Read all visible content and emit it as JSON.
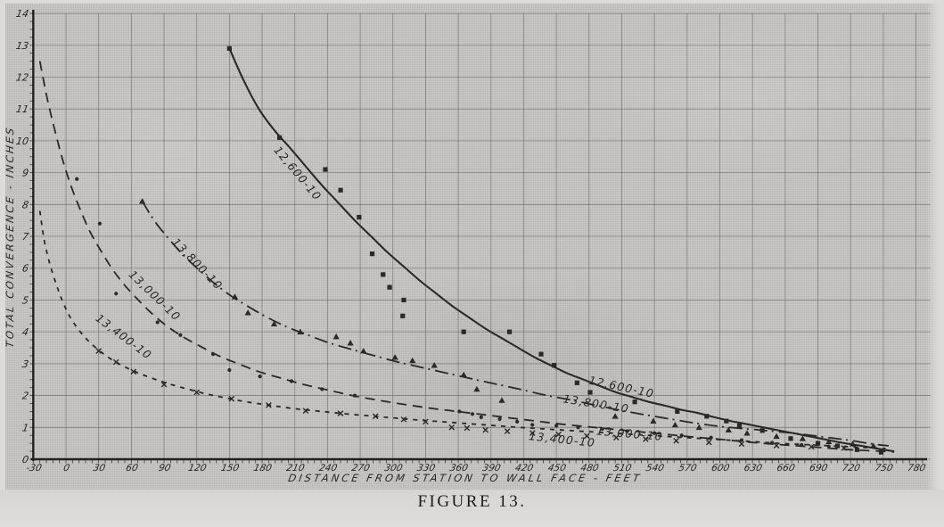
{
  "page": {
    "caption": "FIGURE 13."
  },
  "colors": {
    "paper": "#c8c7c3",
    "ink": "#2b2925",
    "grid": "#5d5950",
    "axis": "#23221e",
    "label": "#26241f"
  },
  "chart_data": {
    "type": "line",
    "title": "FIGURE 13.",
    "xlabel": "DISTANCE FROM STATION TO WALL FACE - FEET",
    "ylabel": "TOTAL CONVERGENCE - INCHES",
    "xlim": [
      -30,
      780
    ],
    "ylim": [
      0,
      14
    ],
    "grid": true,
    "x_ticks": [
      -30,
      0,
      30,
      60,
      90,
      120,
      150,
      180,
      210,
      240,
      270,
      300,
      330,
      360,
      390,
      420,
      450,
      480,
      510,
      540,
      570,
      600,
      630,
      660,
      690,
      720,
      750,
      780
    ],
    "y_ticks": [
      0,
      1,
      2,
      3,
      4,
      5,
      6,
      7,
      8,
      9,
      10,
      11,
      12,
      13,
      14
    ],
    "series": [
      {
        "name": "12,600-10",
        "line": "solid",
        "marker": "square",
        "curve": [
          [
            150,
            12.9
          ],
          [
            163,
            11.9
          ],
          [
            177,
            11.0
          ],
          [
            192,
            10.3
          ],
          [
            205,
            9.8
          ],
          [
            220,
            9.2
          ],
          [
            235,
            8.6
          ],
          [
            250,
            8.05
          ],
          [
            265,
            7.5
          ],
          [
            280,
            7.0
          ],
          [
            295,
            6.5
          ],
          [
            310,
            6.05
          ],
          [
            325,
            5.6
          ],
          [
            340,
            5.2
          ],
          [
            355,
            4.8
          ],
          [
            370,
            4.45
          ],
          [
            385,
            4.1
          ],
          [
            400,
            3.8
          ],
          [
            415,
            3.5
          ],
          [
            430,
            3.2
          ],
          [
            445,
            2.95
          ],
          [
            460,
            2.7
          ],
          [
            475,
            2.5
          ],
          [
            490,
            2.3
          ],
          [
            505,
            2.1
          ],
          [
            520,
            1.95
          ],
          [
            535,
            1.8
          ],
          [
            550,
            1.68
          ],
          [
            565,
            1.55
          ],
          [
            580,
            1.45
          ],
          [
            595,
            1.32
          ],
          [
            610,
            1.2
          ],
          [
            625,
            1.1
          ],
          [
            640,
            1.0
          ],
          [
            655,
            0.9
          ],
          [
            670,
            0.8
          ],
          [
            685,
            0.7
          ],
          [
            700,
            0.6
          ],
          [
            715,
            0.5
          ],
          [
            730,
            0.42
          ],
          [
            745,
            0.33
          ],
          [
            760,
            0.25
          ]
        ],
        "points": [
          [
            150,
            12.9
          ],
          [
            196,
            10.1
          ],
          [
            238,
            9.1
          ],
          [
            252,
            8.45
          ],
          [
            269,
            7.6
          ],
          [
            281,
            6.45
          ],
          [
            291,
            5.8
          ],
          [
            297,
            5.4
          ],
          [
            310,
            5.0
          ],
          [
            309,
            4.5
          ],
          [
            365,
            4.0
          ],
          [
            407,
            4.0
          ],
          [
            436,
            3.3
          ],
          [
            448,
            2.95
          ],
          [
            469,
            2.4
          ],
          [
            481,
            2.1
          ],
          [
            522,
            1.8
          ],
          [
            561,
            1.5
          ],
          [
            588,
            1.35
          ],
          [
            606,
            1.2
          ],
          [
            618,
            1.05
          ],
          [
            639,
            0.9
          ],
          [
            665,
            0.65
          ],
          [
            690,
            0.5
          ],
          [
            708,
            0.42
          ],
          [
            726,
            0.3
          ],
          [
            748,
            0.22
          ]
        ]
      },
      {
        "name": "13,800-10",
        "line": "dashdot",
        "marker": "triangle",
        "curve": [
          [
            70,
            8.1
          ],
          [
            82,
            7.45
          ],
          [
            95,
            6.9
          ],
          [
            108,
            6.4
          ],
          [
            122,
            5.95
          ],
          [
            137,
            5.5
          ],
          [
            152,
            5.12
          ],
          [
            168,
            4.78
          ],
          [
            185,
            4.45
          ],
          [
            203,
            4.15
          ],
          [
            222,
            3.9
          ],
          [
            242,
            3.65
          ],
          [
            262,
            3.45
          ],
          [
            283,
            3.25
          ],
          [
            305,
            3.05
          ],
          [
            327,
            2.88
          ],
          [
            350,
            2.7
          ],
          [
            373,
            2.52
          ],
          [
            396,
            2.35
          ],
          [
            419,
            2.18
          ],
          [
            442,
            2.0
          ],
          [
            465,
            1.85
          ],
          [
            488,
            1.68
          ],
          [
            511,
            1.52
          ],
          [
            534,
            1.38
          ],
          [
            557,
            1.25
          ],
          [
            580,
            1.12
          ],
          [
            603,
            1.02
          ],
          [
            626,
            0.95
          ],
          [
            649,
            0.88
          ],
          [
            672,
            0.8
          ],
          [
            695,
            0.7
          ],
          [
            718,
            0.6
          ],
          [
            740,
            0.48
          ],
          [
            755,
            0.42
          ]
        ],
        "points": [
          [
            70,
            8.1
          ],
          [
            155,
            5.1
          ],
          [
            167,
            4.6
          ],
          [
            191,
            4.25
          ],
          [
            215,
            4.0
          ],
          [
            248,
            3.85
          ],
          [
            261,
            3.65
          ],
          [
            273,
            3.4
          ],
          [
            302,
            3.2
          ],
          [
            318,
            3.1
          ],
          [
            338,
            2.95
          ],
          [
            365,
            2.65
          ],
          [
            377,
            2.2
          ],
          [
            400,
            1.85
          ],
          [
            504,
            1.35
          ],
          [
            539,
            1.2
          ],
          [
            559,
            1.08
          ],
          [
            581,
            1.0
          ],
          [
            608,
            0.92
          ],
          [
            625,
            0.82
          ],
          [
            652,
            0.72
          ],
          [
            676,
            0.65
          ],
          [
            700,
            0.55
          ],
          [
            722,
            0.48
          ],
          [
            741,
            0.42
          ]
        ]
      },
      {
        "name": "13,000-10",
        "line": "dash",
        "marker": "circle",
        "curve": [
          [
            -24,
            12.5
          ],
          [
            -17,
            11.3
          ],
          [
            -10,
            10.3
          ],
          [
            -3,
            9.4
          ],
          [
            5,
            8.55
          ],
          [
            13,
            7.85
          ],
          [
            22,
            7.15
          ],
          [
            32,
            6.55
          ],
          [
            42,
            6.0
          ],
          [
            53,
            5.5
          ],
          [
            65,
            5.05
          ],
          [
            78,
            4.6
          ],
          [
            92,
            4.2
          ],
          [
            107,
            3.85
          ],
          [
            123,
            3.55
          ],
          [
            140,
            3.25
          ],
          [
            158,
            3.0
          ],
          [
            177,
            2.75
          ],
          [
            197,
            2.55
          ],
          [
            218,
            2.35
          ],
          [
            240,
            2.18
          ],
          [
            263,
            2.0
          ],
          [
            287,
            1.85
          ],
          [
            311,
            1.72
          ],
          [
            335,
            1.6
          ],
          [
            359,
            1.5
          ],
          [
            383,
            1.4
          ],
          [
            407,
            1.3
          ],
          [
            431,
            1.2
          ],
          [
            455,
            1.1
          ],
          [
            479,
            1.02
          ],
          [
            503,
            0.94
          ],
          [
            527,
            0.86
          ],
          [
            551,
            0.78
          ],
          [
            575,
            0.7
          ],
          [
            599,
            0.63
          ],
          [
            623,
            0.55
          ],
          [
            647,
            0.48
          ],
          [
            671,
            0.42
          ],
          [
            695,
            0.36
          ],
          [
            719,
            0.3
          ],
          [
            743,
            0.26
          ],
          [
            760,
            0.23
          ]
        ],
        "points": [
          [
            10,
            8.8
          ],
          [
            31,
            7.4
          ],
          [
            46,
            5.2
          ],
          [
            84,
            4.3
          ],
          [
            105,
            3.9
          ],
          [
            135,
            3.3
          ],
          [
            150,
            2.8
          ],
          [
            178,
            2.6
          ],
          [
            207,
            2.45
          ],
          [
            235,
            2.2
          ],
          [
            265,
            2.0
          ],
          [
            361,
            1.5
          ],
          [
            373,
            1.42
          ],
          [
            381,
            1.32
          ],
          [
            398,
            1.26
          ],
          [
            414,
            1.18
          ],
          [
            428,
            1.08
          ],
          [
            450,
            1.05
          ],
          [
            470,
            1.0
          ],
          [
            492,
            0.95
          ],
          [
            515,
            0.88
          ],
          [
            540,
            0.82
          ],
          [
            565,
            0.75
          ],
          [
            592,
            0.68
          ],
          [
            620,
            0.6
          ],
          [
            648,
            0.52
          ],
          [
            675,
            0.45
          ],
          [
            700,
            0.4
          ]
        ]
      },
      {
        "name": "13,400-10",
        "line": "shortdash",
        "marker": "x",
        "curve": [
          [
            -24,
            7.8
          ],
          [
            -20,
            6.9
          ],
          [
            -15,
            6.15
          ],
          [
            -9,
            5.5
          ],
          [
            -3,
            4.95
          ],
          [
            4,
            4.45
          ],
          [
            12,
            4.05
          ],
          [
            21,
            3.7
          ],
          [
            31,
            3.4
          ],
          [
            42,
            3.13
          ],
          [
            54,
            2.9
          ],
          [
            67,
            2.7
          ],
          [
            81,
            2.52
          ],
          [
            96,
            2.35
          ],
          [
            112,
            2.2
          ],
          [
            129,
            2.05
          ],
          [
            147,
            1.92
          ],
          [
            166,
            1.8
          ],
          [
            186,
            1.7
          ],
          [
            207,
            1.6
          ],
          [
            229,
            1.52
          ],
          [
            252,
            1.44
          ],
          [
            276,
            1.37
          ],
          [
            300,
            1.3
          ],
          [
            324,
            1.23
          ],
          [
            348,
            1.17
          ],
          [
            372,
            1.11
          ],
          [
            396,
            1.05
          ],
          [
            420,
            0.99
          ],
          [
            444,
            0.94
          ],
          [
            468,
            0.89
          ],
          [
            492,
            0.84
          ],
          [
            516,
            0.79
          ],
          [
            540,
            0.74
          ],
          [
            564,
            0.69
          ],
          [
            588,
            0.64
          ],
          [
            612,
            0.59
          ],
          [
            636,
            0.54
          ],
          [
            660,
            0.49
          ],
          [
            684,
            0.45
          ],
          [
            708,
            0.41
          ],
          [
            732,
            0.37
          ],
          [
            752,
            0.34
          ]
        ],
        "points": [
          [
            30,
            3.4
          ],
          [
            46,
            3.05
          ],
          [
            62,
            2.75
          ],
          [
            90,
            2.35
          ],
          [
            120,
            2.1
          ],
          [
            152,
            1.9
          ],
          [
            186,
            1.7
          ],
          [
            220,
            1.52
          ],
          [
            252,
            1.44
          ],
          [
            284,
            1.35
          ],
          [
            310,
            1.25
          ],
          [
            330,
            1.18
          ],
          [
            354,
            1.0
          ],
          [
            368,
            0.98
          ],
          [
            385,
            0.92
          ],
          [
            405,
            0.88
          ],
          [
            428,
            0.82
          ],
          [
            452,
            0.78
          ],
          [
            478,
            0.73
          ],
          [
            505,
            0.68
          ],
          [
            532,
            0.63
          ],
          [
            560,
            0.58
          ],
          [
            590,
            0.53
          ],
          [
            620,
            0.48
          ],
          [
            652,
            0.43
          ],
          [
            684,
            0.39
          ],
          [
            714,
            0.35
          ]
        ]
      }
    ],
    "annotations": [
      {
        "text": "12,600-10",
        "x": 210,
        "y": 8.9,
        "rot": 50
      },
      {
        "text": "13,800-10",
        "x": 118,
        "y": 6.05,
        "rot": 46
      },
      {
        "text": "13,000-10",
        "x": 79,
        "y": 5.05,
        "rot": 44
      },
      {
        "text": "13,400-10",
        "x": 51,
        "y": 3.75,
        "rot": 37
      },
      {
        "text": "12,600-10",
        "x": 509,
        "y": 2.15,
        "rot": 12
      },
      {
        "text": "13,800-10",
        "x": 486,
        "y": 1.62,
        "rot": 9
      },
      {
        "text": "13,000-10",
        "x": 517,
        "y": 0.68,
        "rot": 5
      },
      {
        "text": "13,400-10",
        "x": 455,
        "y": 0.5,
        "rot": 6
      }
    ]
  }
}
